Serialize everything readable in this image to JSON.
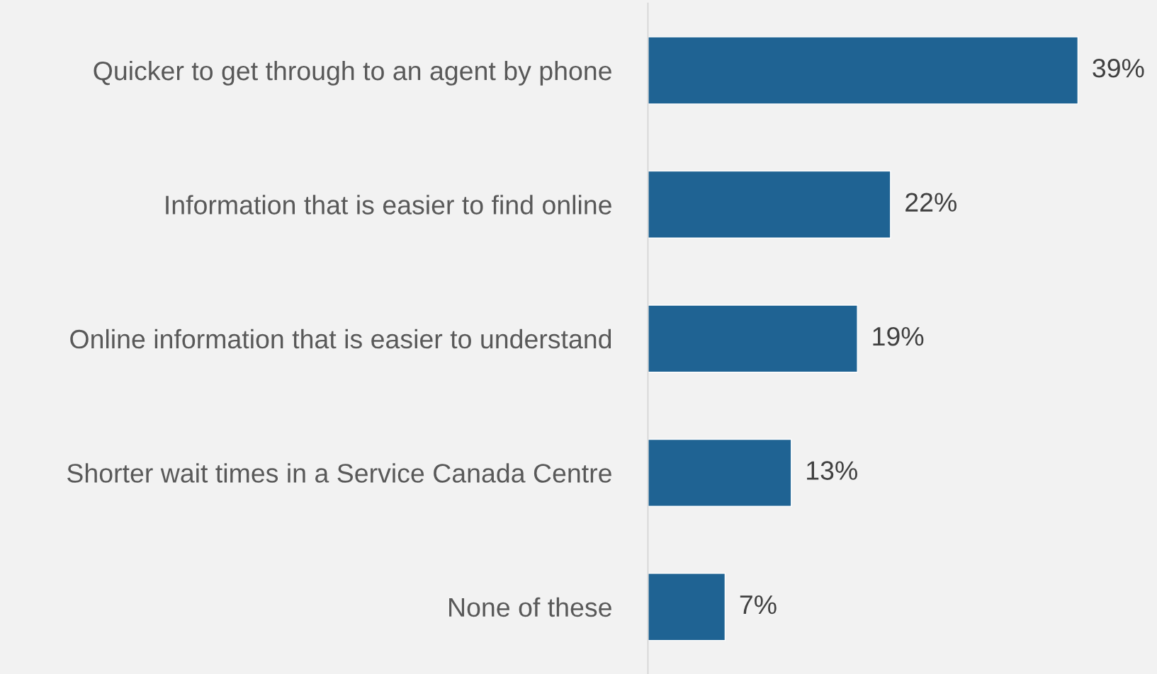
{
  "chart_data": {
    "type": "bar",
    "orientation": "horizontal",
    "categories": [
      "Quicker to get through to an agent by phone",
      "Information that is easier to find online",
      "Online information that is easier to understand",
      "Shorter wait times in a Service Canada Centre",
      "None of these"
    ],
    "values": [
      39,
      22,
      19,
      13,
      7
    ],
    "value_labels": [
      "39%",
      "22%",
      "19%",
      "13%",
      "7%"
    ],
    "color": "#1f6393",
    "grid": false,
    "legend": false
  }
}
